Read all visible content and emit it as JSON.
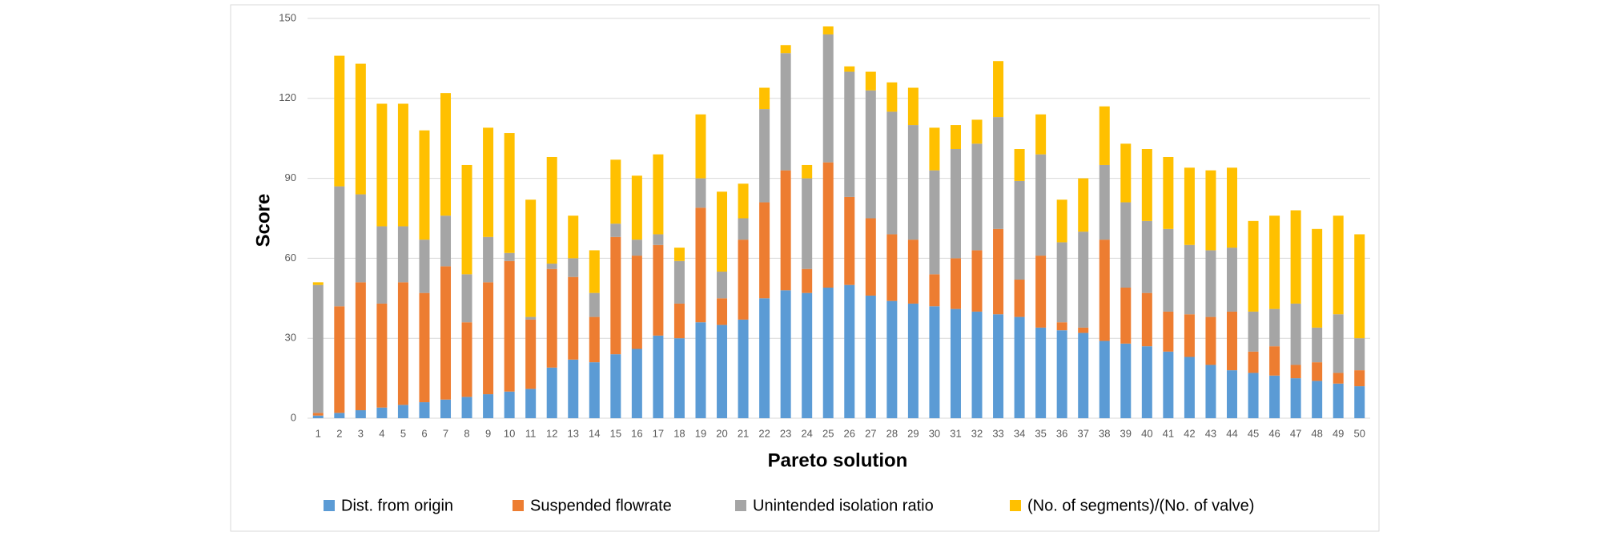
{
  "chart_data": {
    "type": "stacked_bar",
    "x_label": "Pareto solution",
    "y_label": "Score",
    "categories": [
      "1",
      "2",
      "3",
      "4",
      "5",
      "6",
      "7",
      "8",
      "9",
      "10",
      "11",
      "12",
      "13",
      "14",
      "15",
      "16",
      "17",
      "18",
      "19",
      "20",
      "21",
      "22",
      "23",
      "24",
      "25",
      "26",
      "27",
      "28",
      "29",
      "30",
      "31",
      "32",
      "33",
      "34",
      "35",
      "36",
      "37",
      "38",
      "39",
      "40",
      "41",
      "42",
      "43",
      "44",
      "45",
      "46",
      "47",
      "48",
      "49",
      "50"
    ],
    "series": [
      {
        "name": "Dist. from origin",
        "color": "#5b9bd5",
        "values": [
          1,
          2,
          3,
          4,
          5,
          6,
          7,
          8,
          9,
          10,
          11,
          19,
          22,
          21,
          24,
          26,
          31,
          30,
          36,
          35,
          37,
          45,
          48,
          47,
          49,
          50,
          46,
          44,
          43,
          42,
          41,
          40,
          39,
          38,
          34,
          33,
          32,
          29,
          28,
          27,
          25,
          23,
          20,
          18,
          17,
          16,
          15,
          14,
          13,
          12
        ]
      },
      {
        "name": "Suspended flowrate",
        "color": "#ed7d31",
        "values": [
          1,
          40,
          48,
          39,
          46,
          41,
          50,
          28,
          42,
          49,
          26,
          37,
          31,
          17,
          44,
          35,
          34,
          13,
          43,
          10,
          30,
          36,
          45,
          9,
          47,
          33,
          29,
          25,
          24,
          12,
          19,
          23,
          32,
          14,
          27,
          3,
          2,
          38,
          21,
          20,
          15,
          16,
          18,
          22,
          8,
          11,
          5,
          7,
          4,
          6
        ]
      },
      {
        "name": "Unintended isolation ratio",
        "color": "#a5a5a5",
        "values": [
          48,
          45,
          33,
          29,
          21,
          20,
          19,
          18,
          17,
          3,
          1,
          2,
          7,
          9,
          5,
          6,
          4,
          16,
          11,
          10,
          8,
          35,
          44,
          34,
          48,
          47,
          48,
          46,
          43,
          39,
          41,
          40,
          42,
          37,
          38,
          30,
          36,
          28,
          32,
          27,
          31,
          26,
          25,
          24,
          15,
          14,
          23,
          13,
          22,
          12
        ]
      },
      {
        "name": "(No. of segments)/(No. of valve)",
        "color": "#ffc000",
        "values": [
          1,
          49,
          49,
          46,
          46,
          41,
          46,
          41,
          41,
          45,
          44,
          40,
          16,
          16,
          24,
          24,
          30,
          5,
          24,
          30,
          13,
          8,
          3,
          5,
          3,
          2,
          7,
          11,
          14,
          16,
          9,
          9,
          21,
          12,
          15,
          16,
          20,
          22,
          22,
          27,
          27,
          29,
          30,
          30,
          34,
          35,
          35,
          37,
          37,
          39
        ]
      }
    ],
    "ylim": [
      0,
      150
    ],
    "yticks": [
      0,
      30,
      60,
      90,
      120,
      150
    ],
    "grid": true
  }
}
